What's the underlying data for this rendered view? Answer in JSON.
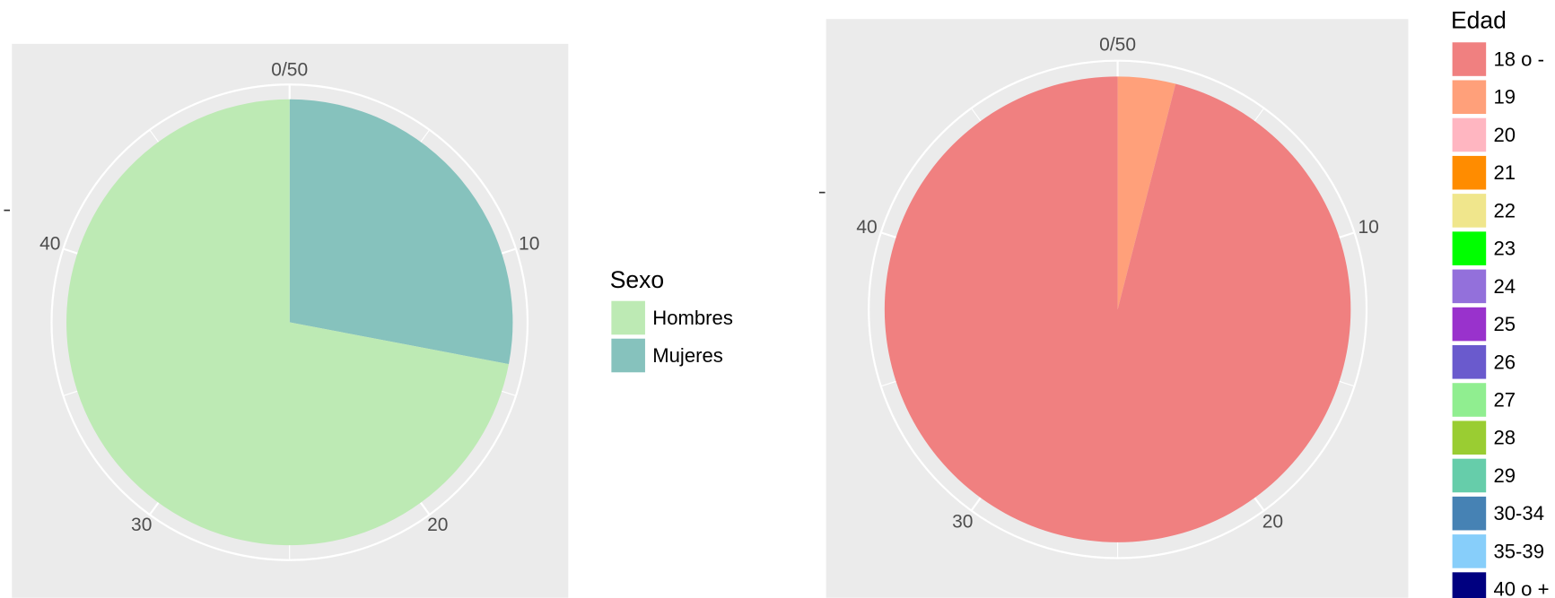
{
  "chart_data": [
    {
      "type": "pie",
      "legend_title": "Sexo",
      "categories": [
        "Hombres",
        "Mujeres"
      ],
      "values": [
        36,
        14
      ],
      "colors": [
        "#bdeab4",
        "#86c2bd"
      ],
      "ticks": [
        {
          "value": 0,
          "label": "0/50"
        },
        10,
        20,
        30,
        40
      ]
    },
    {
      "type": "pie",
      "legend_title": "Edad",
      "categories": [
        "18 o -",
        "19",
        "20",
        "21",
        "22",
        "23",
        "24",
        "25",
        "26",
        "27",
        "28",
        "29",
        "30-34",
        "35-39",
        "40 o +"
      ],
      "values": [
        48,
        2,
        0,
        0,
        0,
        0,
        0,
        0,
        0,
        0,
        0,
        0,
        0,
        0,
        0
      ],
      "colors": [
        "#f08080",
        "#ffa07a",
        "#ffb6c1",
        "#ff8c00",
        "#f0e68c",
        "#00ff00",
        "#9370db",
        "#9932cc",
        "#6a5acd",
        "#90ee90",
        "#9acd32",
        "#66cdaa",
        "#4682b4",
        "#87cefa",
        "#000080"
      ],
      "ticks": [
        {
          "value": 0,
          "label": "0/50"
        },
        10,
        20,
        30,
        40
      ]
    }
  ]
}
